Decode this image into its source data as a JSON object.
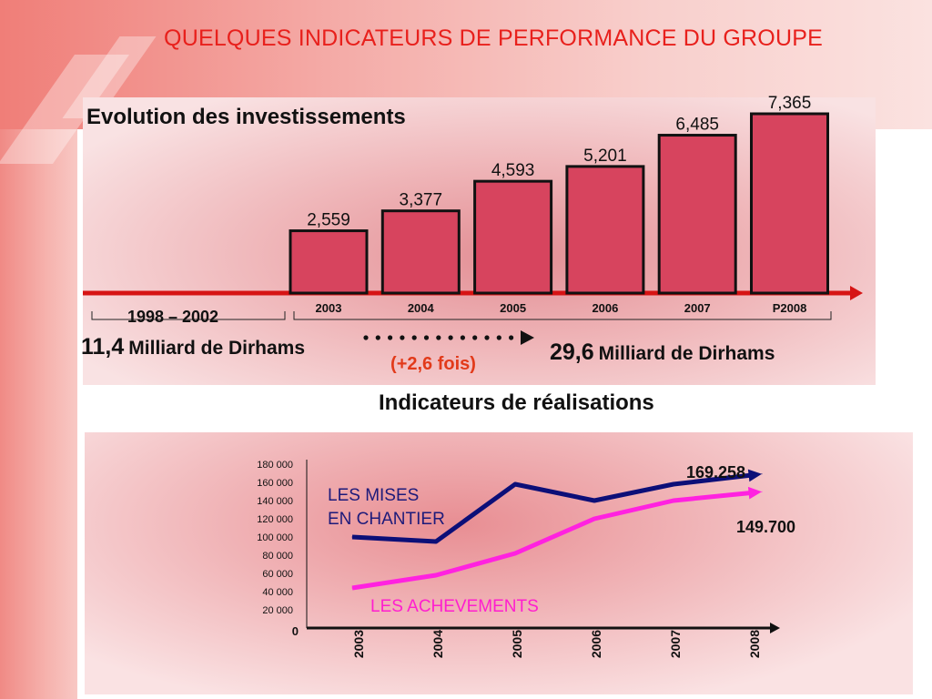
{
  "page": {
    "title": "QUELQUES INDICATEURS DE PERFORMANCE DU GROUPE",
    "section2_heading": "Indicateurs de réalisations"
  },
  "chart_data": [
    {
      "type": "bar",
      "title": "Evolution des investissements",
      "categories": [
        "2003",
        "2004",
        "2005",
        "2006",
        "2007",
        "P2008"
      ],
      "values": [
        2559,
        3377,
        4593,
        5201,
        6485,
        7365
      ],
      "value_labels": [
        "2,559",
        "3,377",
        "4,593",
        "5,201",
        "6,485",
        "7,365"
      ],
      "bar_color": "#d7445e",
      "annotations": {
        "period_before": "1998 – 2002",
        "total_before_num": "11,4",
        "total_before_unit": "Milliard de Dirhams",
        "growth": "(+2,6 fois)",
        "total_after_num": "29,6",
        "total_after_unit": "Milliard de Dirhams"
      }
    },
    {
      "type": "line",
      "categories": [
        "2003",
        "2004",
        "2005",
        "2006",
        "2007",
        "2008"
      ],
      "ylim": [
        0,
        180000
      ],
      "yticks": [
        0,
        20000,
        40000,
        60000,
        80000,
        100000,
        120000,
        140000,
        160000,
        180000
      ],
      "ytick_labels": [
        "0",
        "20 000",
        "40 000",
        "60 000",
        "80 000",
        "100 000",
        "120 000",
        "140 000",
        "160 000",
        "180 000"
      ],
      "series": [
        {
          "name": "LES MISES EN CHANTIER",
          "label_lines": [
            "LES MISES",
            "EN CHANTIER"
          ],
          "color": "#0c0f78",
          "values": [
            100000,
            95000,
            158000,
            140000,
            158000,
            169258
          ],
          "end_label": "169.258"
        },
        {
          "name": "LES ACHEVEMENTS",
          "label_lines": [
            "LES ACHEVEMENTS"
          ],
          "color": "#ff22e0",
          "values": [
            44000,
            58000,
            82000,
            120000,
            140000,
            149700
          ],
          "end_label": "149.700"
        }
      ]
    }
  ]
}
